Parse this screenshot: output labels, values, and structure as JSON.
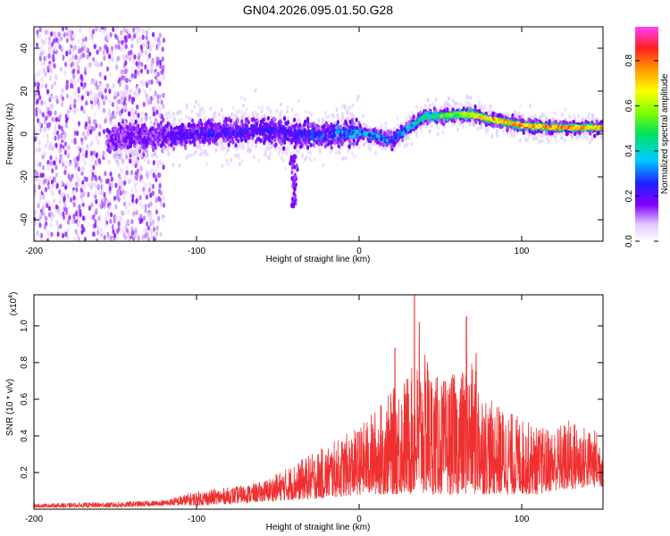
{
  "title": "GN04.2026.095.01.50.G28",
  "chart_data": [
    {
      "type": "heatmap",
      "name": "spectrogram",
      "xlabel": "Height of straight line (km)",
      "ylabel": "Frequency (Hz)",
      "xlim": [
        -200,
        150
      ],
      "ylim": [
        -50,
        50
      ],
      "x_ticks": [
        -200,
        -100,
        0,
        100
      ],
      "x_tick_labels": [
        "-200",
        "-100",
        "0",
        "100"
      ],
      "y_ticks": [
        -40,
        -20,
        0,
        20,
        40
      ],
      "y_tick_labels": [
        "-40",
        "-20",
        "0",
        "20",
        "40"
      ],
      "colorbar": {
        "label": "Normalized spectral amplitude",
        "range": [
          0,
          0.95
        ],
        "ticks": [
          0,
          0.2,
          0.4,
          0.6,
          0.8
        ],
        "tick_labels": [
          "0.0",
          "0.2",
          "0.4",
          "0.6",
          "0.8"
        ],
        "colors": [
          "#ffffff",
          "#e0c8ff",
          "#8000ff",
          "#2020ff",
          "#00ccff",
          "#00e060",
          "#80ff00",
          "#ffff00",
          "#ff9900",
          "#ff2020",
          "#ff40ff"
        ]
      },
      "ridge": {
        "x": [
          -150,
          -120,
          -100,
          -80,
          -60,
          -40,
          -20,
          0,
          20,
          40,
          60,
          70,
          80,
          100,
          120,
          150
        ],
        "freq": [
          -2,
          -1,
          0,
          1,
          2,
          0,
          0,
          1,
          -3,
          8,
          9,
          9,
          7,
          4,
          3,
          3
        ],
        "amplitude": [
          0.2,
          0.25,
          0.3,
          0.3,
          0.3,
          0.3,
          0.35,
          0.45,
          0.4,
          0.5,
          0.65,
          0.75,
          0.8,
          0.85,
          0.9,
          0.85
        ]
      }
    },
    {
      "type": "line",
      "name": "snr",
      "xlabel": "Height of straight line (km)",
      "ylabel": "SNR (10 * v/v)",
      "y_multiplier": "(x10",
      "y_multiplier_exp": "4",
      "y_multiplier_close": ")",
      "xlim": [
        -200,
        150
      ],
      "ylim": [
        0,
        1.17
      ],
      "x_ticks": [
        -200,
        -100,
        0,
        100
      ],
      "x_tick_labels": [
        "-200",
        "-100",
        "0",
        "100"
      ],
      "y_ticks": [
        0.2,
        0.4,
        0.6,
        0.8,
        1.0
      ],
      "y_tick_labels": [
        "0.2",
        "0.4",
        "0.6",
        "0.8",
        "1.0"
      ],
      "color": "#f03030",
      "envelope": {
        "x": [
          -200,
          -150,
          -120,
          -100,
          -80,
          -60,
          -40,
          -20,
          0,
          10,
          20,
          30,
          40,
          50,
          60,
          70,
          80,
          90,
          100,
          110,
          120,
          130,
          140,
          150
        ],
        "max": [
          0.03,
          0.04,
          0.05,
          0.1,
          0.12,
          0.15,
          0.25,
          0.35,
          0.45,
          0.55,
          0.65,
          0.75,
          0.85,
          0.7,
          0.75,
          0.8,
          0.6,
          0.55,
          0.5,
          0.45,
          0.45,
          0.5,
          0.45,
          0.42
        ],
        "min": [
          0.01,
          0.01,
          0.02,
          0.02,
          0.03,
          0.04,
          0.05,
          0.06,
          0.08,
          0.08,
          0.08,
          0.08,
          0.08,
          0.08,
          0.08,
          0.08,
          0.08,
          0.08,
          0.08,
          0.08,
          0.1,
          0.1,
          0.12,
          0.12
        ]
      },
      "peaks": [
        {
          "x": 34,
          "y": 1.17
        },
        {
          "x": 37,
          "y": 1.02
        },
        {
          "x": 66,
          "y": 1.05
        },
        {
          "x": 72,
          "y": 0.85
        },
        {
          "x": 22,
          "y": 0.88
        },
        {
          "x": 42,
          "y": 0.8
        }
      ]
    }
  ]
}
